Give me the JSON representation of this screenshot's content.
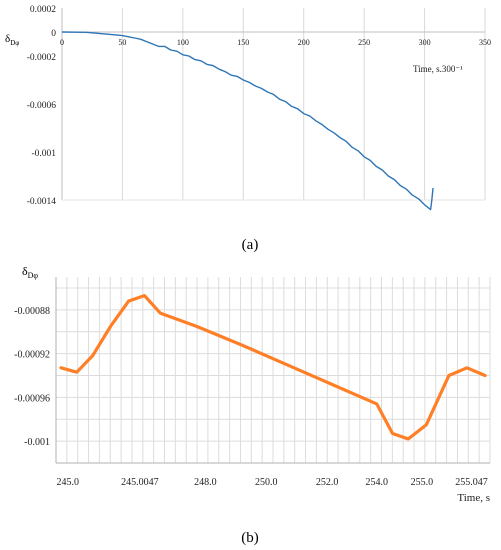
{
  "chart_data": [
    {
      "type": "line",
      "panel_label": "(a)",
      "ylabel": "δDφ",
      "xlabel": "Time, s.300⁻¹",
      "xlim": [
        0,
        350
      ],
      "ylim": [
        -0.0014,
        0.0002
      ],
      "x_ticks": [
        "0",
        "50",
        "100",
        "150",
        "200",
        "250",
        "300",
        "350"
      ],
      "y_ticks": [
        "0.0002",
        "0",
        "-0.0002",
        "-0.0006",
        "-0.001",
        "-0.0014"
      ],
      "y_tick_values": [
        0.0002,
        0,
        -0.0002,
        -0.0006,
        -0.001,
        -0.0014
      ],
      "grid": "vertical",
      "color": "#2e75b6",
      "series": [
        {
          "x": [
            0,
            20,
            40,
            50,
            55,
            60,
            65,
            70,
            75,
            80,
            85,
            90,
            95,
            100,
            105,
            110,
            115,
            120,
            125,
            130,
            135,
            140,
            145,
            150,
            155,
            160,
            165,
            170,
            175,
            180,
            185,
            190,
            195,
            200,
            205,
            210,
            215,
            220,
            225,
            230,
            235,
            240,
            245,
            250,
            255,
            260,
            265,
            270,
            275,
            280,
            285,
            290,
            295,
            300,
            305,
            306,
            307
          ],
          "y": [
            0,
            -3e-06,
            -2e-05,
            -3e-05,
            -4e-05,
            -5e-05,
            -6e-05,
            -8e-05,
            -0.0001,
            -0.00012,
            -0.00012,
            -0.00015,
            -0.00016,
            -0.00019,
            -0.0002,
            -0.00023,
            -0.00024,
            -0.00027,
            -0.00028,
            -0.00031,
            -0.00033,
            -0.00036,
            -0.00037,
            -0.0004,
            -0.00042,
            -0.00045,
            -0.00047,
            -0.0005,
            -0.00052,
            -0.00056,
            -0.00058,
            -0.00062,
            -0.00064,
            -0.00068,
            -0.0007,
            -0.00074,
            -0.00077,
            -0.00081,
            -0.00084,
            -0.00088,
            -0.00091,
            -0.00096,
            -0.00099,
            -0.00104,
            -0.00107,
            -0.00112,
            -0.00115,
            -0.0012,
            -0.00123,
            -0.00128,
            -0.00131,
            -0.00136,
            -0.00139,
            -0.00144,
            -0.00148,
            -0.0014,
            -0.0013
          ]
        }
      ]
    },
    {
      "type": "line",
      "panel_label": "(b)",
      "ylabel": "δDφ",
      "xlabel": "Time, s",
      "categories": [
        "245.0",
        "245.0047",
        "248.0",
        "250.0",
        "252.0",
        "254.0",
        "255.0",
        "255.047"
      ],
      "ylim": [
        -0.00102,
        -0.00085
      ],
      "y_ticks": [
        "-0.00088",
        "-0.00092",
        "-0.00096",
        "-0.001"
      ],
      "y_tick_values": [
        -0.00088,
        -0.00092,
        -0.00096,
        -0.001
      ],
      "grid": "both",
      "color": "#ff7f27",
      "series": [
        {
          "x": [
            0,
            0.35,
            0.7,
            1.1,
            1.5,
            1.85,
            2.2,
            3.0,
            4.0,
            5.0,
            6.0,
            7.0,
            7.35,
            7.7,
            8.1,
            8.6,
            9.0,
            9.4
          ],
          "y": [
            -0.000933,
            -0.000937,
            -0.000922,
            -0.000895,
            -0.000872,
            -0.000867,
            -0.000883,
            -0.000895,
            -0.000912,
            -0.00093,
            -0.000948,
            -0.000966,
            -0.000993,
            -0.000998,
            -0.000985,
            -0.00094,
            -0.000933,
            -0.00094
          ]
        }
      ]
    }
  ]
}
